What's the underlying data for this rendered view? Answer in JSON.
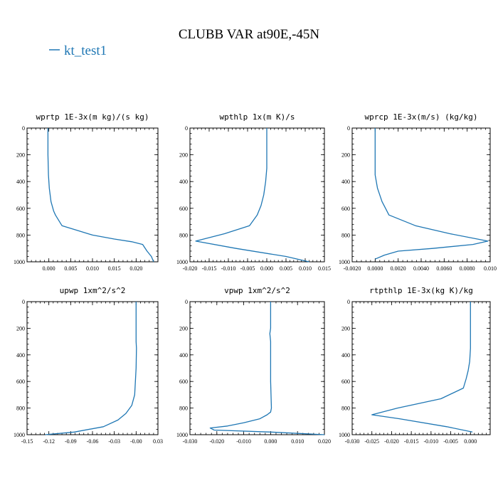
{
  "colors": {
    "line": "#1f77b4"
  },
  "figure": {
    "title": "CLUBB VAR at90E,-45N",
    "legend": [
      {
        "label": "kt_test1"
      }
    ]
  },
  "chart_data": [
    {
      "type": "line",
      "title": "wprtp   1E-3x(m kg)/(s kg)",
      "xlim": [
        -0.005,
        0.025
      ],
      "ylim": [
        1000,
        0
      ],
      "xticks": [
        0.0,
        0.005,
        0.01,
        0.015,
        0.02
      ],
      "xtick_labels": [
        "0.000",
        "0.005",
        "0.010",
        "0.015",
        "0.020"
      ],
      "yticks": [
        0,
        200,
        400,
        600,
        800,
        1000
      ],
      "ytick_labels": [
        "0",
        "200",
        "400",
        "600",
        "800",
        "1000"
      ],
      "series": [
        {
          "name": "kt_test1",
          "x": [
            -0.0002,
            -0.0002,
            -0.0001,
            0.0001,
            0.0005,
            0.0011,
            0.0015,
            0.003,
            0.006,
            0.01,
            0.015,
            0.019,
            0.0215,
            0.0225,
            0.0235,
            0.024
          ],
          "y": [
            0,
            200,
            350,
            450,
            550,
            620,
            650,
            730,
            760,
            800,
            830,
            850,
            870,
            920,
            960,
            1000
          ]
        }
      ]
    },
    {
      "type": "line",
      "title": "wpthlp   1x(m K)/s",
      "xlim": [
        -0.02,
        0.015
      ],
      "ylim": [
        1000,
        0
      ],
      "xticks": [
        -0.02,
        -0.015,
        -0.01,
        -0.005,
        0.0,
        0.005,
        0.01,
        0.015
      ],
      "xtick_labels": [
        "-0.020",
        "-0.015",
        "-0.010",
        "-0.005",
        "0.000",
        "0.005",
        "0.010",
        "0.015"
      ],
      "yticks": [
        0,
        200,
        400,
        600,
        800,
        1000
      ],
      "ytick_labels": [
        "0",
        "200",
        "400",
        "600",
        "800",
        "1000"
      ],
      "series": [
        {
          "name": "kt_test1",
          "x": [
            0.0,
            0.0,
            0.0,
            -0.0003,
            -0.0008,
            -0.0015,
            -0.0025,
            -0.0045,
            -0.011,
            -0.0185,
            -0.008,
            0.005,
            0.011
          ],
          "y": [
            0,
            200,
            300,
            400,
            500,
            580,
            650,
            730,
            790,
            845,
            900,
            960,
            1000
          ]
        }
      ]
    },
    {
      "type": "line",
      "title": "wprcp   1E-3x(m/s) (kg/kg)",
      "xlim": [
        -0.002,
        0.01
      ],
      "ylim": [
        1000,
        0
      ],
      "xticks": [
        -0.002,
        0.0,
        0.002,
        0.004,
        0.006,
        0.008,
        0.01
      ],
      "xtick_labels": [
        "-0.0020",
        "0.0000",
        "0.0020",
        "0.0040",
        "0.0060",
        "0.0080",
        "0.010"
      ],
      "yticks": [
        0,
        200,
        400,
        600,
        800,
        1000
      ],
      "ytick_labels": [
        "0",
        "200",
        "400",
        "600",
        "800",
        "1000"
      ],
      "series": [
        {
          "name": "kt_test1",
          "x": [
            0.0,
            0.0,
            0.0,
            0.0,
            0.0002,
            0.0006,
            0.0009,
            0.0012,
            0.0035,
            0.0065,
            0.0098,
            0.0085,
            0.005,
            0.002,
            0.0008,
            0.0
          ],
          "y": [
            0,
            200,
            300,
            350,
            450,
            550,
            600,
            650,
            730,
            790,
            845,
            870,
            900,
            920,
            950,
            980
          ]
        }
      ]
    },
    {
      "type": "line",
      "title": "upwp   1xm^2/s^2",
      "xlim": [
        -0.15,
        0.03
      ],
      "ylim": [
        1000,
        0
      ],
      "xticks": [
        -0.15,
        -0.12,
        -0.09,
        -0.06,
        -0.03,
        0.0,
        0.03
      ],
      "xtick_labels": [
        "-0.15",
        "-0.12",
        "-0.09",
        "-0.06",
        "-0.03",
        "-0.00",
        "0.03"
      ],
      "yticks": [
        0,
        200,
        400,
        600,
        800,
        1000
      ],
      "ytick_labels": [
        "0",
        "200",
        "400",
        "600",
        "800",
        "1000"
      ],
      "series": [
        {
          "name": "kt_test1",
          "x": [
            0.0,
            0.0,
            0.0,
            0.0,
            0.0005,
            0.0,
            -0.001,
            -0.002,
            -0.006,
            -0.014,
            -0.025,
            -0.045,
            -0.085,
            -0.125
          ],
          "y": [
            0,
            100,
            250,
            300,
            350,
            500,
            600,
            700,
            780,
            840,
            890,
            940,
            980,
            1000
          ]
        }
      ]
    },
    {
      "type": "line",
      "title": "vpwp   1xm^2/s^2",
      "xlim": [
        -0.03,
        0.02
      ],
      "ylim": [
        1000,
        0
      ],
      "xticks": [
        -0.03,
        -0.02,
        -0.01,
        0.0,
        0.01,
        0.02
      ],
      "xtick_labels": [
        "-0.030",
        "-0.020",
        "-0.010",
        "0.000",
        "0.010",
        "0.020"
      ],
      "yticks": [
        0,
        200,
        400,
        600,
        800,
        1000
      ],
      "ytick_labels": [
        "0",
        "200",
        "400",
        "600",
        "800",
        "1000"
      ],
      "series": [
        {
          "name": "kt_test1",
          "x": [
            0.0,
            0.0,
            -0.0003,
            0.0,
            0.0,
            0.0,
            0.0003,
            0.0,
            -0.0013,
            -0.004,
            -0.01,
            -0.016,
            -0.0225,
            -0.021,
            0.0,
            0.02
          ],
          "y": [
            0,
            200,
            240,
            300,
            400,
            600,
            800,
            830,
            850,
            880,
            910,
            935,
            950,
            965,
            980,
            1000
          ]
        }
      ]
    },
    {
      "type": "line",
      "title": "rtpthlp   1E-3x(kg K)/kg",
      "xlim": [
        -0.03,
        0.005
      ],
      "ylim": [
        1000,
        0
      ],
      "xticks": [
        -0.03,
        -0.025,
        -0.02,
        -0.015,
        -0.01,
        -0.005,
        0.0
      ],
      "xtick_labels": [
        "-0.030",
        "-0.025",
        "-0.020",
        "-0.015",
        "-0.010",
        "-0.005",
        "0.000"
      ],
      "yticks": [
        0,
        200,
        400,
        600,
        800,
        1000
      ],
      "ytick_labels": [
        "0",
        "200",
        "400",
        "600",
        "800",
        "1000"
      ],
      "series": [
        {
          "name": "kt_test1",
          "x": [
            0.0,
            0.0,
            0.0,
            -0.0002,
            -0.0006,
            -0.0011,
            -0.0018,
            -0.0075,
            -0.0185,
            -0.025,
            -0.018,
            -0.006,
            0.0005
          ],
          "y": [
            0,
            200,
            350,
            450,
            520,
            580,
            650,
            730,
            800,
            850,
            880,
            940,
            980
          ]
        }
      ]
    }
  ]
}
